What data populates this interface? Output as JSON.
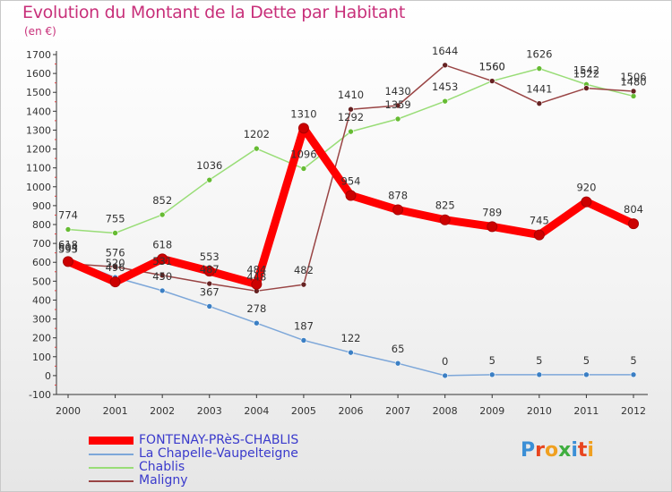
{
  "title": "Evolution du Montant de la Dette par Habitant",
  "subtitle": "(en €)",
  "logo": {
    "letters": [
      "P",
      "r",
      "o",
      "x",
      "i",
      "t",
      "i"
    ],
    "colors": [
      "#3b8fd6",
      "#e8451f",
      "#f0a020",
      "#3fae3f",
      "#3b8fd6",
      "#e8451f",
      "#f0a020"
    ]
  },
  "chart_data": {
    "type": "line",
    "x": [
      2000,
      2001,
      2002,
      2003,
      2004,
      2005,
      2006,
      2007,
      2008,
      2009,
      2010,
      2011,
      2012
    ],
    "ylim": [
      -100,
      1700
    ],
    "yticks": [
      -100,
      0,
      100,
      200,
      300,
      400,
      500,
      600,
      700,
      800,
      900,
      1000,
      1100,
      1200,
      1300,
      1400,
      1500,
      1600,
      1700
    ],
    "grid": false,
    "legend_placement": "bottom-left",
    "series": [
      {
        "name": "FONTENAY-PRèS-CHABLIS",
        "color": "#ff0000",
        "marker_color": "#cc0000",
        "width": 9,
        "values": [
          604,
          496,
          618,
          553,
          484,
          1310,
          954,
          878,
          825,
          789,
          745,
          920,
          804
        ],
        "labels": [
          "604",
          "496",
          "618",
          "553",
          "484",
          "1310",
          "954",
          "878",
          "825",
          "789",
          "745",
          "920",
          "804"
        ]
      },
      {
        "name": "La Chapelle-Vaupelteigne",
        "color": "#7da7d9",
        "marker_color": "#3b7fc4",
        "width": 1.5,
        "values": [
          618,
          520,
          450,
          367,
          278,
          187,
          122,
          65,
          0,
          5,
          5,
          5,
          5
        ],
        "labels": [
          "618",
          "520",
          "450",
          "367",
          "278",
          "187",
          "122",
          "65",
          "0",
          "5",
          "5",
          "5",
          "5"
        ]
      },
      {
        "name": "Chablis",
        "color": "#99dd77",
        "marker_color": "#66bb33",
        "width": 1.5,
        "values": [
          774,
          755,
          852,
          1036,
          1202,
          1096,
          1292,
          1359,
          1453,
          1560,
          1626,
          1542,
          1480
        ],
        "labels": [
          "774",
          "755",
          "852",
          "1036",
          "1202",
          "1096",
          "1292",
          "1359",
          "1453",
          "1560",
          "1626",
          "1542",
          "1480"
        ]
      },
      {
        "name": "Maligny",
        "color": "#994444",
        "marker_color": "#662222",
        "width": 1.5,
        "values": [
          593,
          576,
          531,
          487,
          448,
          482,
          1410,
          1430,
          1644,
          1560,
          1441,
          1522,
          1506
        ],
        "labels": [
          "593",
          "576",
          "531",
          "487",
          "448",
          "482",
          "1410",
          "1430",
          "1644",
          "1560",
          "1441",
          "1522",
          "1506"
        ]
      }
    ]
  }
}
